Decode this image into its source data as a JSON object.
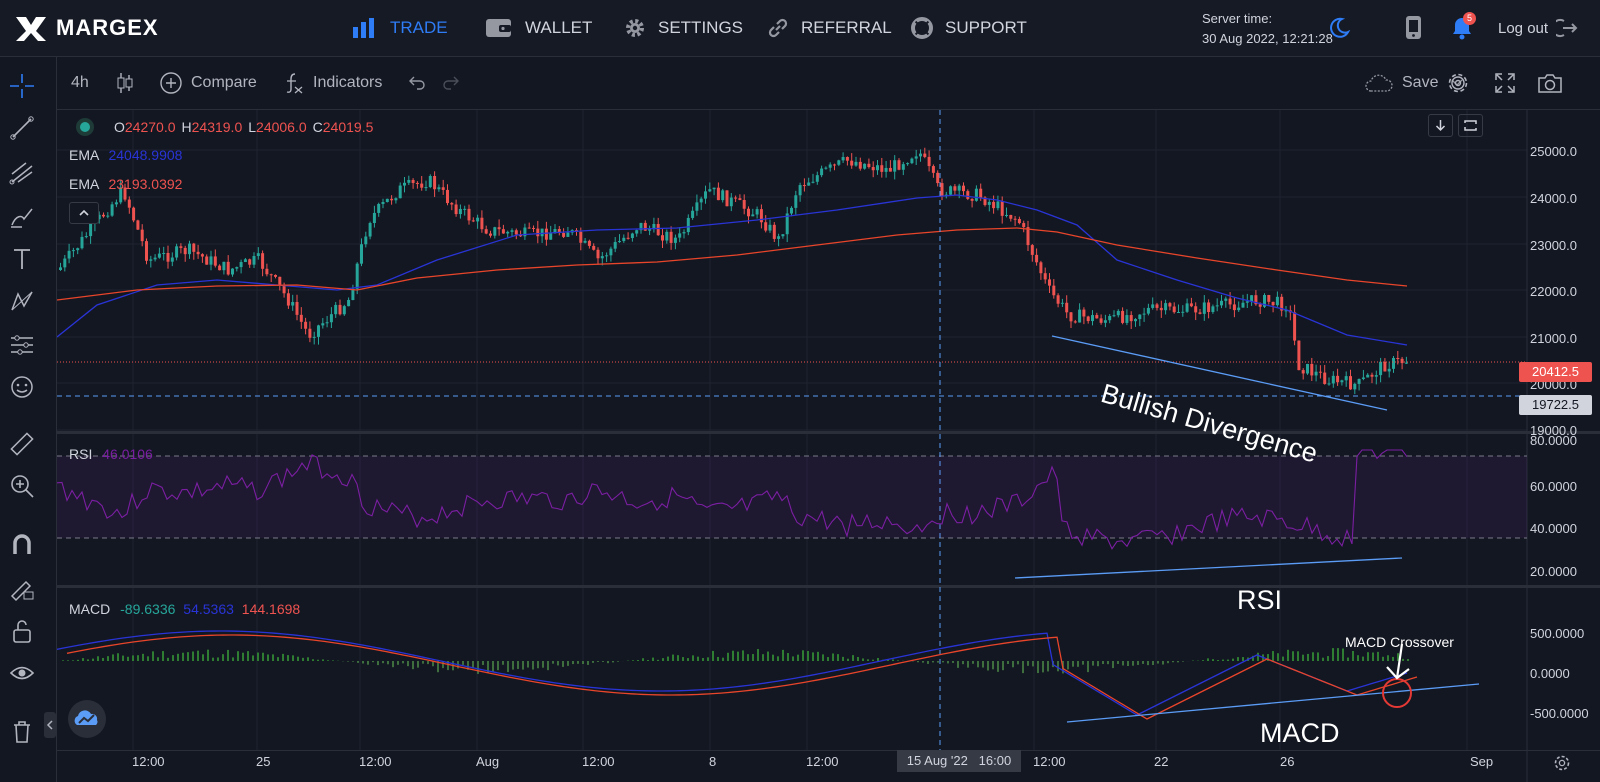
{
  "nav": {
    "logo": "MARGEX",
    "items": [
      {
        "label": "TRADE",
        "icon": "bar-chart-icon"
      },
      {
        "label": "WALLET",
        "icon": "wallet-icon"
      },
      {
        "label": "SETTINGS",
        "icon": "gear-icon"
      },
      {
        "label": "REFERRAL",
        "icon": "link-icon"
      },
      {
        "label": "SUPPORT",
        "icon": "lifebuoy-icon"
      }
    ],
    "server_label": "Server time:",
    "server_time": "30 Aug 2022, 12:21:28",
    "notification_count": "5",
    "logout": "Log out"
  },
  "toolbar": {
    "interval": "4h",
    "compare": "Compare",
    "indicators": "Indicators",
    "save": "Save"
  },
  "legend": {
    "ohlc": {
      "o": "24270.0",
      "h": "24319.0",
      "l": "24006.0",
      "c": "24019.5"
    },
    "ema1_label": "EMA",
    "ema1_value": "24048.9908",
    "ema2_label": "EMA",
    "ema2_value": "23193.0392",
    "rsi_label": "RSI",
    "rsi_value": "46.0106",
    "macd_label": "MACD",
    "macd_v1": "-89.6336",
    "macd_v2": "54.5363",
    "macd_v3": "144.1698"
  },
  "price_axis": {
    "main": [
      "25000.0",
      "24000.0",
      "23000.0",
      "22000.0",
      "21000.0",
      "20000.0",
      "19000.0"
    ],
    "rsi": [
      "80.0000",
      "60.0000",
      "40.0000",
      "20.0000"
    ],
    "macd": [
      "500.0000",
      "0.0000",
      "-500.0000"
    ],
    "last_price": "20412.5",
    "crosshair_price": "19722.5"
  },
  "time_axis": {
    "labels": [
      "12:00",
      "25",
      "12:00",
      "Aug",
      "12:00",
      "8",
      "12:00",
      "12:00",
      "22",
      "26",
      "Sep"
    ],
    "crosshair": "15 Aug '22   16:00"
  },
  "annotations": {
    "bullish": "Bullish Divergence",
    "rsi": "RSI",
    "macd": "MACD",
    "macd_cross": "MACD Crossover"
  },
  "colors": {
    "accent": "#2e7cf6",
    "up": "#26a69a",
    "down": "#ef5350",
    "ema_fast": "#2934d6",
    "ema_slow": "#e8452a",
    "rsi": "#7b1fa2"
  }
}
